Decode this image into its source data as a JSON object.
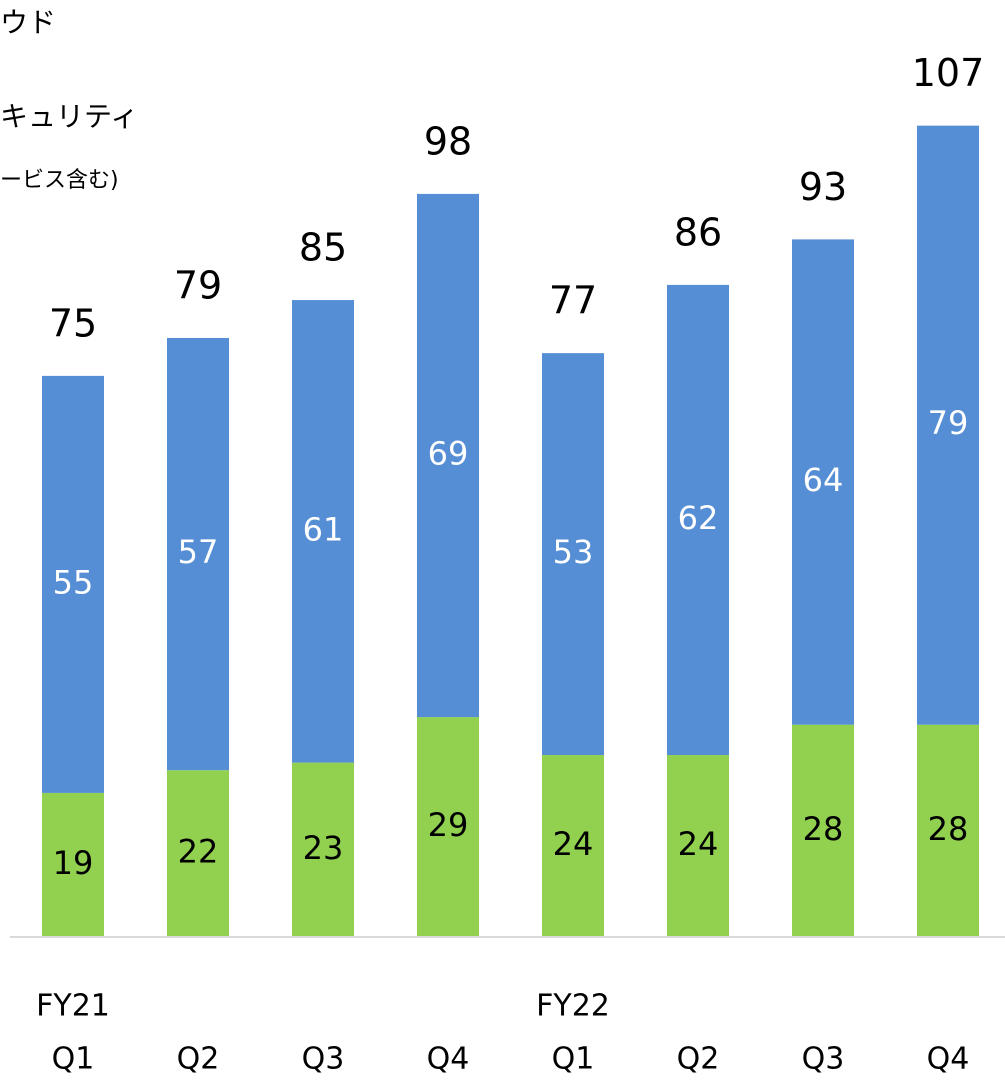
{
  "chart_data": {
    "type": "stacked_bar",
    "legend_note": "ービス含む)",
    "categories": [
      "Q1",
      "Q2",
      "Q3",
      "Q4",
      "Q1",
      "Q2",
      "Q3",
      "Q4"
    ],
    "fiscal_years": [
      "FY21",
      null,
      null,
      null,
      "FY22",
      null,
      null,
      null
    ],
    "series": [
      {
        "name": "キュリティ",
        "color": "#92d050",
        "label_color": "#000000",
        "values": [
          19,
          22,
          23,
          29,
          24,
          24,
          28,
          28
        ]
      },
      {
        "name": "ウド",
        "color": "#558ed5",
        "label_color": "#ffffff",
        "values": [
          55,
          57,
          61,
          69,
          53,
          62,
          64,
          79
        ]
      }
    ],
    "totals": [
      75,
      79,
      85,
      98,
      77,
      86,
      93,
      107
    ],
    "ylim": [
      0,
      115
    ]
  }
}
